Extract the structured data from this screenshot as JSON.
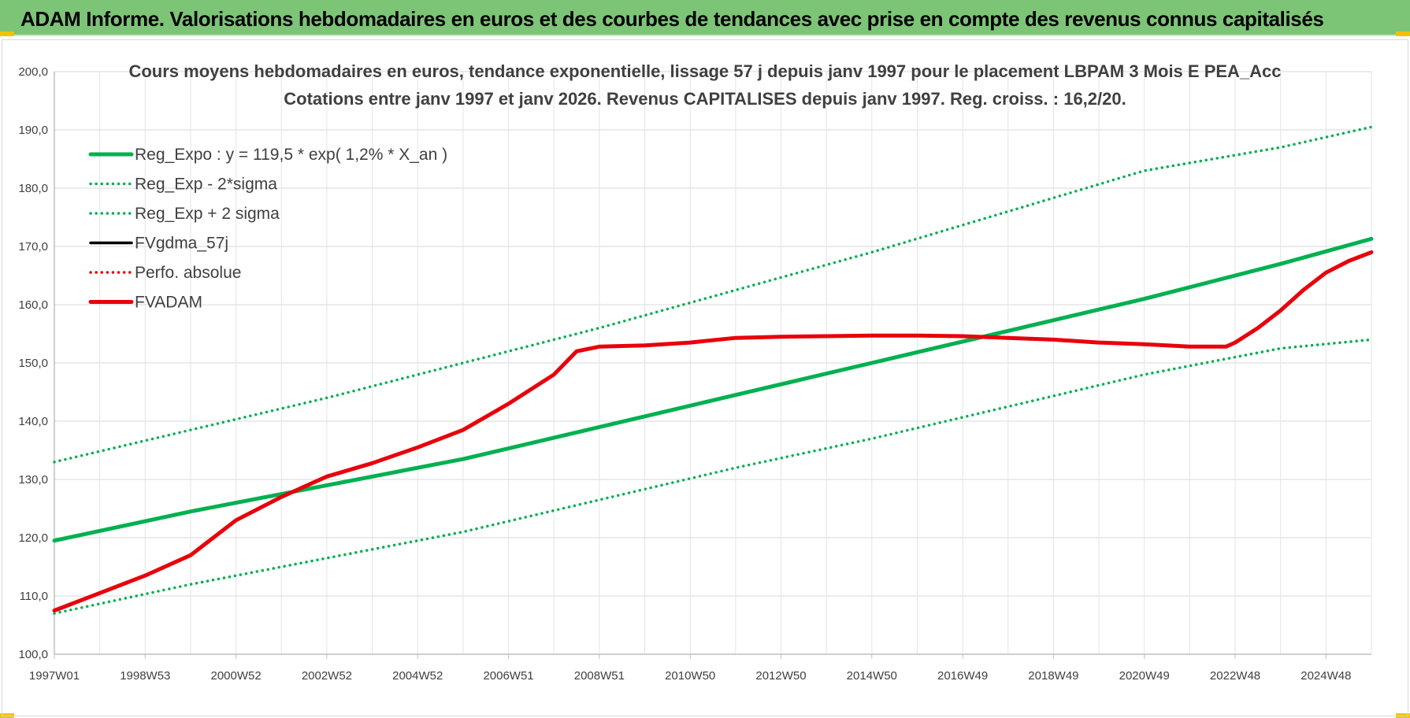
{
  "banner": {
    "title": "ADAM Informe. Valorisations hebdomadaires en euros et des courbes de tendances avec prise en compte des revenus connus capitalisés"
  },
  "colors": {
    "banner_bg": "#7cc576",
    "trend_green": "#00b050",
    "adam_red": "#e8000b",
    "grid": "#d9d9d9"
  },
  "chart_data": {
    "type": "line",
    "title_line1": "Cours moyens hebdomadaires en euros, tendance exponentielle, lissage 57 j depuis janv 1997  pour le placement LBPAM 3 Mois E PEA_Acc",
    "title_line2": "Cotations entre janv 1997 et janv 2026. Revenus CAPITALISES depuis janv 1997. Reg. croiss. : 16,2/20.",
    "xlabel": "",
    "ylabel": "",
    "ylim": [
      100,
      200
    ],
    "x_range_years": [
      1997.0,
      2026.0
    ],
    "grid": true,
    "legend_position": "top-left",
    "y_ticks": [
      "100,0",
      "110,0",
      "120,0",
      "130,0",
      "140,0",
      "150,0",
      "160,0",
      "170,0",
      "180,0",
      "190,0",
      "200,0"
    ],
    "x_ticks": [
      {
        "label": "1997W01",
        "year": 1997.0
      },
      {
        "label": "1998W53",
        "year": 1999.0
      },
      {
        "label": "2000W52",
        "year": 2001.0
      },
      {
        "label": "2002W52",
        "year": 2003.0
      },
      {
        "label": "2004W52",
        "year": 2005.0
      },
      {
        "label": "2006W51",
        "year": 2007.0
      },
      {
        "label": "2008W51",
        "year": 2009.0
      },
      {
        "label": "2010W50",
        "year": 2011.0
      },
      {
        "label": "2012W50",
        "year": 2013.0
      },
      {
        "label": "2014W50",
        "year": 2015.0
      },
      {
        "label": "2016W49",
        "year": 2017.0
      },
      {
        "label": "2018W49",
        "year": 2019.0
      },
      {
        "label": "2020W49",
        "year": 2021.0
      },
      {
        "label": "2022W48",
        "year": 2023.0
      },
      {
        "label": "2024W48",
        "year": 2025.0
      }
    ],
    "series": [
      {
        "name": "Reg_Expo : y = 119,5 * exp( 1,2% *  X_an )",
        "color": "#00b050",
        "style": "solid",
        "width": "thick",
        "x": [
          1997,
          2000,
          2003,
          2006,
          2009,
          2012,
          2015,
          2018,
          2021,
          2024,
          2026
        ],
        "values": [
          119.5,
          124.5,
          129.0,
          133.5,
          139.0,
          144.5,
          150.0,
          155.5,
          161.0,
          167.0,
          171.3
        ]
      },
      {
        "name": "Reg_Exp - 2*sigma",
        "color": "#00b050",
        "style": "dotted",
        "width": "medium",
        "x": [
          1997,
          2000,
          2003,
          2006,
          2009,
          2012,
          2015,
          2018,
          2021,
          2024,
          2026
        ],
        "values": [
          107.0,
          112.0,
          116.5,
          121.0,
          126.5,
          132.0,
          137.0,
          142.5,
          148.0,
          152.5,
          154.0
        ]
      },
      {
        "name": "Reg_Exp + 2 sigma",
        "color": "#00b050",
        "style": "dotted",
        "width": "medium",
        "x": [
          1997,
          2000,
          2003,
          2006,
          2009,
          2012,
          2015,
          2018,
          2021,
          2024,
          2026
        ],
        "values": [
          133.0,
          138.5,
          144.0,
          150.0,
          156.0,
          162.5,
          169.0,
          176.0,
          183.0,
          187.0,
          190.5
        ]
      },
      {
        "name": "FVgdma_57j",
        "color": "#000000",
        "style": "solid",
        "width": "medium",
        "x": [],
        "values": []
      },
      {
        "name": "Perfo. absolue",
        "color": "#e8000b",
        "style": "dotted",
        "width": "medium",
        "x": [],
        "values": []
      },
      {
        "name": "FVADAM",
        "color": "#e8000b",
        "style": "solid",
        "width": "thick",
        "x": [
          1997,
          1998,
          1999,
          2000,
          2001,
          2002,
          2003,
          2004,
          2005,
          2006,
          2007,
          2008,
          2008.5,
          2009,
          2010,
          2011,
          2012,
          2013,
          2014,
          2015,
          2016,
          2017,
          2018,
          2019,
          2020,
          2021,
          2022,
          2022.8,
          2023,
          2023.5,
          2024,
          2024.5,
          2025,
          2025.5,
          2026
        ],
        "values": [
          107.5,
          110.5,
          113.5,
          117.0,
          123.0,
          127.0,
          130.5,
          132.8,
          135.5,
          138.5,
          143.0,
          148.0,
          152.0,
          152.8,
          153.0,
          153.5,
          154.3,
          154.5,
          154.6,
          154.7,
          154.7,
          154.6,
          154.3,
          154.0,
          153.5,
          153.2,
          152.8,
          152.8,
          153.5,
          156.0,
          159.0,
          162.5,
          165.5,
          167.5,
          169.0
        ]
      }
    ]
  }
}
